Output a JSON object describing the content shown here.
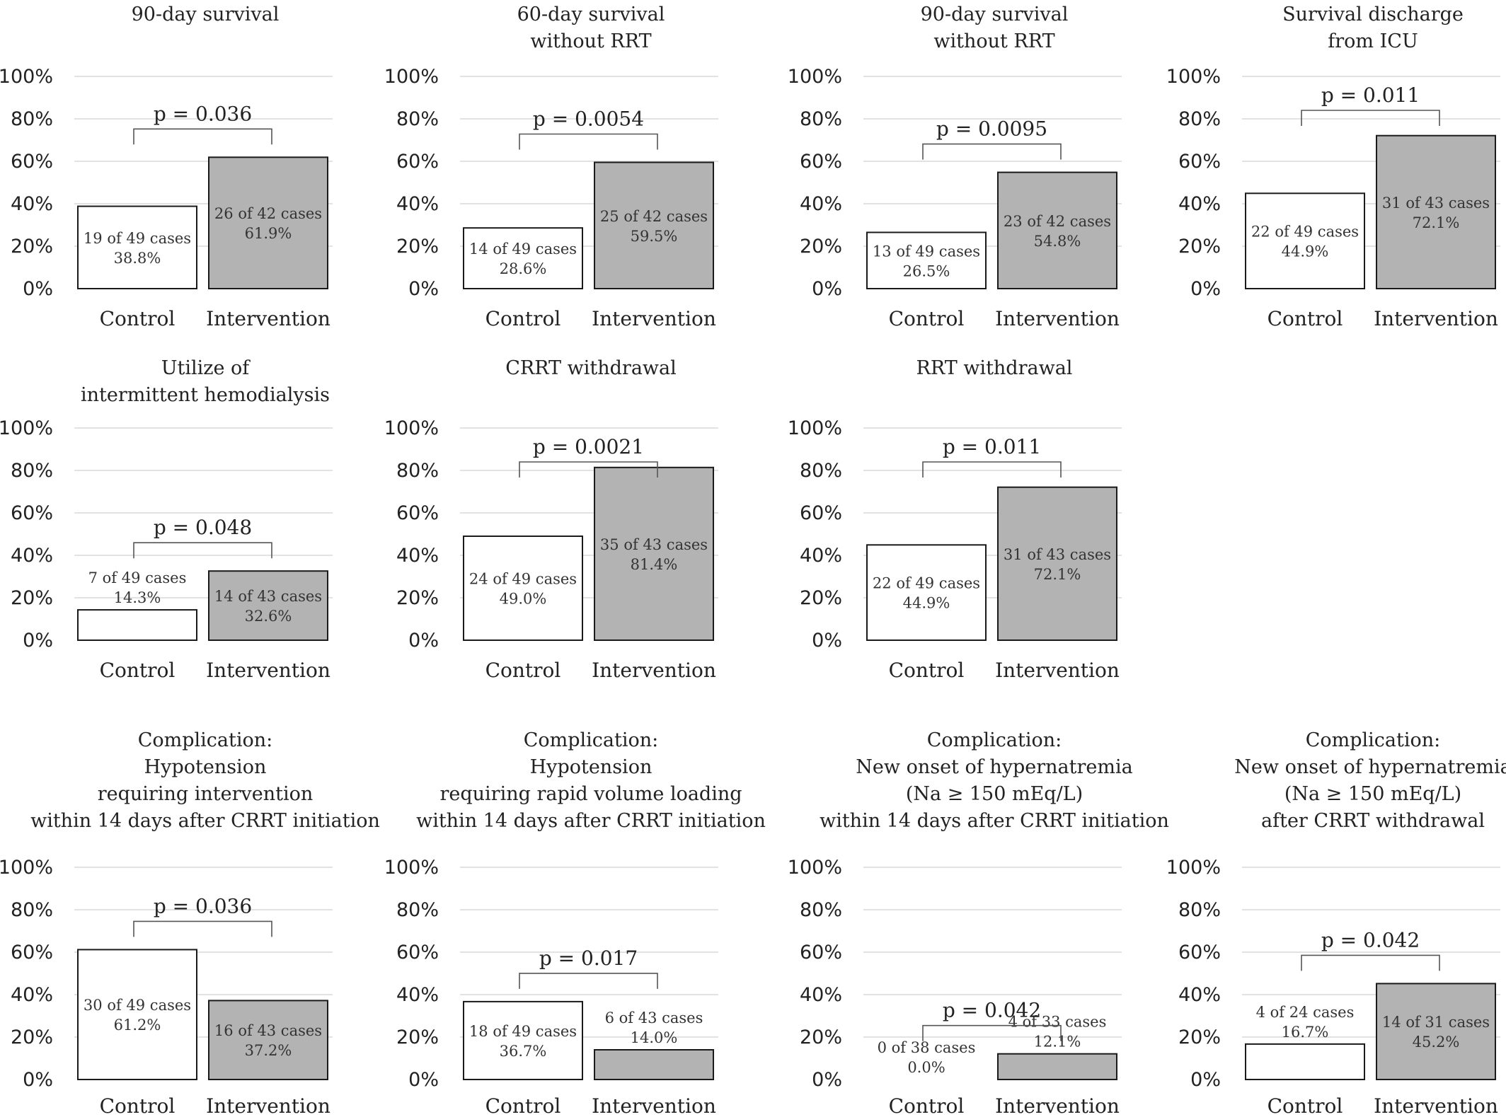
{
  "colors": {
    "control_fill": "#ffffff",
    "intervention_fill": "#b3b3b3",
    "bar_stroke": "#1a1a1a",
    "grid": "#d9d9d9"
  },
  "chart_data": [
    {
      "type": "bar",
      "title": [
        "90-day survival"
      ],
      "categories": [
        "Control",
        "Intervention"
      ],
      "values": [
        38.8,
        61.9
      ],
      "value_labels": [
        [
          "19 of 49 cases",
          "38.8%"
        ],
        [
          "26 of 42 cases",
          "61.9%"
        ]
      ],
      "p_value": "p = 0.036",
      "ylim": [
        0,
        100
      ],
      "yticks": [
        "0%",
        "20%",
        "40%",
        "60%",
        "80%",
        "100%"
      ]
    },
    {
      "type": "bar",
      "title": [
        "60-day survival",
        "without RRT"
      ],
      "categories": [
        "Control",
        "Intervention"
      ],
      "values": [
        28.6,
        59.5
      ],
      "value_labels": [
        [
          "14 of 49 cases",
          "28.6%"
        ],
        [
          "25 of 42 cases",
          "59.5%"
        ]
      ],
      "p_value": "p = 0.0054",
      "ylim": [
        0,
        100
      ],
      "yticks": [
        "0%",
        "20%",
        "40%",
        "60%",
        "80%",
        "100%"
      ]
    },
    {
      "type": "bar",
      "title": [
        "90-day survival",
        "without RRT"
      ],
      "categories": [
        "Control",
        "Intervention"
      ],
      "values": [
        26.5,
        54.8
      ],
      "value_labels": [
        [
          "13 of 49 cases",
          "26.5%"
        ],
        [
          "23 of 42 cases",
          "54.8%"
        ]
      ],
      "p_value": "p = 0.0095",
      "ylim": [
        0,
        100
      ],
      "yticks": [
        "0%",
        "20%",
        "40%",
        "60%",
        "80%",
        "100%"
      ]
    },
    {
      "type": "bar",
      "title": [
        "Survival discharge",
        "from ICU"
      ],
      "categories": [
        "Control",
        "Intervention"
      ],
      "values": [
        44.9,
        72.1
      ],
      "value_labels": [
        [
          "22 of 49 cases",
          "44.9%"
        ],
        [
          "31 of 43 cases",
          "72.1%"
        ]
      ],
      "p_value": "p = 0.011",
      "ylim": [
        0,
        100
      ],
      "yticks": [
        "0%",
        "20%",
        "40%",
        "60%",
        "80%",
        "100%"
      ]
    },
    {
      "type": "bar",
      "title": [
        "Utilize of",
        "intermittent hemodialysis"
      ],
      "categories": [
        "Control",
        "Intervention"
      ],
      "values": [
        14.3,
        32.6
      ],
      "value_labels": [
        [
          "7 of 49 cases",
          "14.3%"
        ],
        [
          "14 of 43  cases",
          "32.6%"
        ]
      ],
      "p_value": "p = 0.048",
      "ylim": [
        0,
        100
      ],
      "yticks": [
        "0%",
        "20%",
        "40%",
        "60%",
        "80%",
        "100%"
      ]
    },
    {
      "type": "bar",
      "title": [
        "CRRT withdrawal"
      ],
      "categories": [
        "Control",
        "Intervention"
      ],
      "values": [
        49.0,
        81.4
      ],
      "value_labels": [
        [
          "24 of 49 cases",
          "49.0%"
        ],
        [
          "35 of 43 cases",
          "81.4%"
        ]
      ],
      "p_value": "p = 0.0021",
      "ylim": [
        0,
        100
      ],
      "yticks": [
        "0%",
        "20%",
        "40%",
        "60%",
        "80%",
        "100%"
      ]
    },
    {
      "type": "bar",
      "title": [
        "RRT withdrawal"
      ],
      "categories": [
        "Control",
        "Intervention"
      ],
      "values": [
        44.9,
        72.1
      ],
      "value_labels": [
        [
          "22 of 49 cases",
          "44.9%"
        ],
        [
          "31 of 43 cases",
          "72.1%"
        ]
      ],
      "p_value": "p = 0.011",
      "ylim": [
        0,
        100
      ],
      "yticks": [
        "0%",
        "20%",
        "40%",
        "60%",
        "80%",
        "100%"
      ]
    },
    {
      "type": "bar",
      "title": [
        "Complication:",
        "Hypotension",
        "requiring intervention",
        "within 14 days after CRRT initiation"
      ],
      "categories": [
        "Control",
        "Intervention"
      ],
      "values": [
        61.2,
        37.2
      ],
      "value_labels": [
        [
          "30 of 49 cases",
          "61.2%"
        ],
        [
          "16 of 43 cases",
          "37.2%"
        ]
      ],
      "p_value": "p = 0.036",
      "ylim": [
        0,
        100
      ],
      "yticks": [
        "0%",
        "20%",
        "40%",
        "60%",
        "80%",
        "100%"
      ]
    },
    {
      "type": "bar",
      "title": [
        "Complication:",
        "Hypotension",
        "requiring rapid volume loading",
        "within 14 days after CRRT initiation"
      ],
      "categories": [
        "Control",
        "Intervention"
      ],
      "values": [
        36.7,
        14.0
      ],
      "value_labels": [
        [
          "18 of 49 cases",
          "36.7%"
        ],
        [
          "6 of 43 cases",
          "14.0%"
        ]
      ],
      "p_value": "p = 0.017",
      "ylim": [
        0,
        100
      ],
      "yticks": [
        "0%",
        "20%",
        "40%",
        "60%",
        "80%",
        "100%"
      ]
    },
    {
      "type": "bar",
      "title": [
        "Complication:",
        "New onset of hypernatremia",
        "(Na ≥ 150 mEq/L)",
        "within 14 days after CRRT initiation"
      ],
      "categories": [
        "Control",
        "Intervention"
      ],
      "values": [
        0.0,
        12.1
      ],
      "value_labels": [
        [
          "0 of 38 cases",
          "0.0%"
        ],
        [
          "4 of 33 cases",
          "12.1%"
        ]
      ],
      "p_value": "p = 0.042",
      "ylim": [
        0,
        100
      ],
      "yticks": [
        "0%",
        "20%",
        "40%",
        "60%",
        "80%",
        "100%"
      ]
    },
    {
      "type": "bar",
      "title": [
        "Complication:",
        "New onset of hypernatremia",
        "(Na ≥ 150 mEq/L)",
        "after CRRT withdrawal"
      ],
      "categories": [
        "Control",
        "Intervention"
      ],
      "values": [
        16.7,
        45.2
      ],
      "value_labels": [
        [
          "4 of 24 cases",
          "16.7%"
        ],
        [
          "14 of 31 cases",
          "45.2%"
        ]
      ],
      "p_value": "p = 0.042",
      "ylim": [
        0,
        100
      ],
      "yticks": [
        "0%",
        "20%",
        "40%",
        "60%",
        "80%",
        "100%"
      ]
    }
  ]
}
